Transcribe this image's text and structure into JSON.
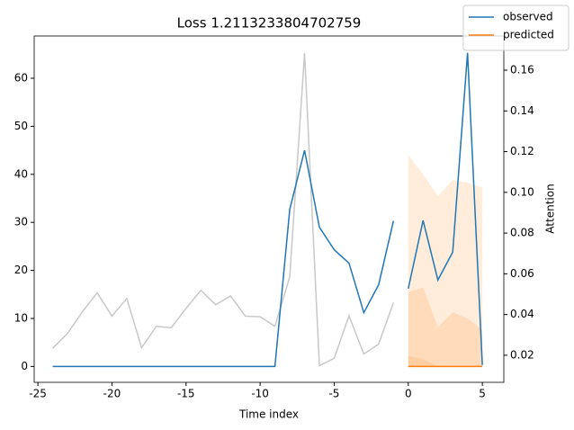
{
  "chart_data": {
    "type": "line",
    "title": "Loss 1.2113233804702759",
    "xlabel": "Time index",
    "y2label": "Attention",
    "xlim": [
      -25.25,
      6.45
    ],
    "ylim": [
      -3.3,
      68.8
    ],
    "y2lim": [
      0.0067,
      0.1768
    ],
    "xticks": [
      -25,
      -20,
      -15,
      -10,
      -5,
      0,
      5
    ],
    "yticks": [
      0,
      10,
      20,
      30,
      40,
      50,
      60
    ],
    "y2ticks": [
      0.02,
      0.04,
      0.06,
      0.08,
      {
        "value": 0.1,
        "label": "0.10"
      },
      0.12,
      0.14,
      0.16
    ],
    "legend": "upper right",
    "bands": [
      {
        "color": "#ff7f0e",
        "x": [
          0,
          1,
          2,
          3,
          4,
          5
        ],
        "upper": [
          44,
          40,
          35.5,
          38.8,
          38.3,
          37.2
        ],
        "lower": [
          0,
          0,
          0,
          0,
          0,
          0
        ]
      },
      {
        "color": "#ff7f0e",
        "x": [
          0,
          1,
          2,
          3,
          4,
          5
        ],
        "upper": [
          15.5,
          16.4,
          8.2,
          11.3,
          10,
          7.6
        ],
        "lower": [
          0,
          0,
          0,
          0,
          0,
          0
        ]
      },
      {
        "color": "#ff7f0e",
        "x": [
          0,
          1,
          2,
          3,
          4,
          5
        ],
        "upper": [
          2.2,
          1.5,
          0,
          0,
          0,
          0
        ],
        "lower": [
          0,
          0,
          0,
          0,
          0,
          0
        ]
      }
    ],
    "series": [
      {
        "name": "observed",
        "color": "#1f77b4",
        "x": [
          -24,
          -23,
          -22,
          -21,
          -20,
          -19,
          -18,
          -17,
          -16,
          -15,
          -14,
          -13,
          -12,
          -11,
          -10,
          -9,
          -8,
          -7,
          -6,
          -5,
          -4,
          -3,
          -2,
          -1,
          null,
          0,
          1,
          2,
          3,
          4,
          5
        ],
        "values": [
          0,
          0,
          0,
          0,
          0,
          0,
          0,
          0,
          0,
          0,
          0,
          0,
          0,
          0,
          0,
          0,
          32.7,
          45,
          29,
          24.3,
          21.5,
          11.2,
          17,
          30.3,
          null,
          16.2,
          30.4,
          18,
          23.8,
          65.3,
          0.3
        ]
      },
      {
        "name": "predicted",
        "color": "#ff7f0e",
        "x": [
          0,
          1,
          2,
          3,
          4,
          5
        ],
        "values": [
          0,
          0,
          0,
          0,
          0,
          0
        ]
      },
      {
        "color": "#c8c8c8",
        "axis": "y2",
        "x": [
          -24,
          -23,
          -22,
          -21,
          -20,
          -19,
          -18,
          -17,
          -16,
          -15,
          -14,
          -13,
          -12,
          -11,
          -10,
          -9,
          -8,
          -7,
          -6,
          -5,
          -4,
          -3,
          -2,
          -1
        ],
        "values": [
          0.0234,
          0.0307,
          0.0413,
          0.0507,
          0.0392,
          0.0479,
          0.0237,
          0.0342,
          0.0335,
          0.043,
          0.0519,
          0.0448,
          0.0491,
          0.0392,
          0.0389,
          0.0342,
          0.0585,
          0.1684,
          0.0149,
          0.0185,
          0.0394,
          0.0206,
          0.0255,
          0.0458
        ]
      }
    ]
  }
}
